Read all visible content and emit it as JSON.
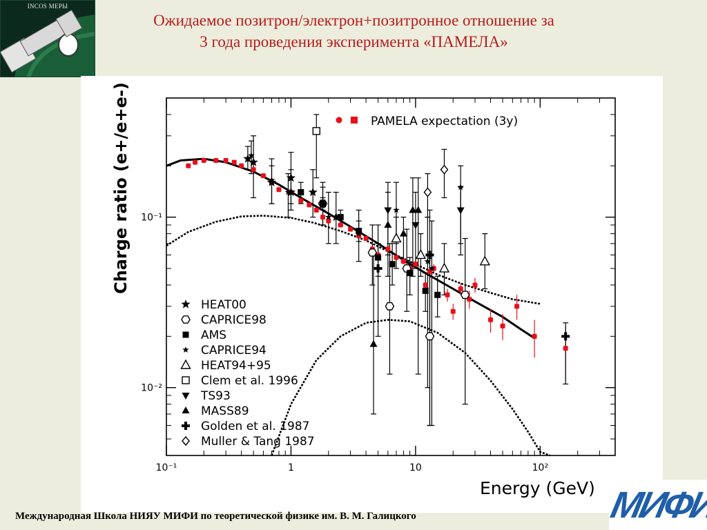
{
  "title": {
    "line1": "Ожидаемое позитрон/электрон+позитронное отношение за",
    "line2": "3 года проведения эксперимента «ПАМЕЛА»"
  },
  "logo_top_left": {
    "text": "INCOS МЕРЫ",
    "icon": "satellite-icon"
  },
  "footer": {
    "text": "Международная Школа НИЯУ МИФИ по теоретической физике им. В. М. Галицкого"
  },
  "logo_bottom_right": {
    "text": "МИФИ"
  },
  "colors": {
    "title": "#b71a1a",
    "pamela": "#e8101a",
    "background": "#ededde",
    "logo_blue": "#1f5fa8"
  },
  "chart_data": {
    "type": "scatter",
    "xlabel": "Energy (GeV)",
    "ylabel": "Charge ratio (e+/e+e-)",
    "xscale": "log",
    "yscale": "log",
    "xlim": [
      0.1,
      400
    ],
    "ylim": [
      0.004,
      0.5
    ],
    "xticks": [
      "10⁻¹",
      "1",
      "10",
      "10²"
    ],
    "yticks": [
      "10⁻²",
      "10⁻¹"
    ],
    "legend_top": "PAMELA expectation (3y)",
    "legend_entries": [
      {
        "label": "HEAT00",
        "marker": "star"
      },
      {
        "label": "CAPRICE98",
        "marker": "hexagon-open"
      },
      {
        "label": "AMS",
        "marker": "square-filled"
      },
      {
        "label": "CAPRICE94",
        "marker": "star-small"
      },
      {
        "label": "HEAT94+95",
        "marker": "triangle-up-open"
      },
      {
        "label": "Clem et al. 1996",
        "marker": "square-open"
      },
      {
        "label": "TS93",
        "marker": "triangle-down-filled"
      },
      {
        "label": "MASS89",
        "marker": "triangle-up-filled"
      },
      {
        "label": "Golden et al. 1987",
        "marker": "cross-filled"
      },
      {
        "label": "Muller & Tang 1987",
        "marker": "diamond-open"
      }
    ],
    "curves": [
      {
        "style": "solid",
        "points": [
          [
            0.1,
            0.2
          ],
          [
            0.13,
            0.215
          ],
          [
            0.2,
            0.22
          ],
          [
            0.3,
            0.21
          ],
          [
            0.5,
            0.185
          ],
          [
            0.8,
            0.155
          ],
          [
            1.2,
            0.13
          ],
          [
            2,
            0.105
          ],
          [
            3,
            0.088
          ],
          [
            5,
            0.07
          ],
          [
            8,
            0.056
          ],
          [
            12,
            0.047
          ],
          [
            20,
            0.038
          ],
          [
            30,
            0.032
          ],
          [
            50,
            0.026
          ],
          [
            70,
            0.022
          ],
          [
            90,
            0.0195
          ]
        ]
      },
      {
        "style": "dotted",
        "points": [
          [
            0.1,
            0.068
          ],
          [
            0.15,
            0.082
          ],
          [
            0.25,
            0.094
          ],
          [
            0.4,
            0.101
          ],
          [
            0.6,
            0.102
          ],
          [
            1,
            0.099
          ],
          [
            1.5,
            0.093
          ],
          [
            2.5,
            0.083
          ],
          [
            4,
            0.073
          ],
          [
            6,
            0.063
          ],
          [
            10,
            0.053
          ],
          [
            15,
            0.046
          ],
          [
            25,
            0.04
          ],
          [
            40,
            0.036
          ],
          [
            60,
            0.033
          ],
          [
            100,
            0.031
          ]
        ]
      },
      {
        "style": "dotted",
        "points": [
          [
            0.7,
            0.004
          ],
          [
            1,
            0.008
          ],
          [
            1.6,
            0.0145
          ],
          [
            2.5,
            0.02
          ],
          [
            4,
            0.024
          ],
          [
            6,
            0.025
          ],
          [
            9,
            0.0245
          ],
          [
            15,
            0.021
          ],
          [
            25,
            0.016
          ],
          [
            40,
            0.011
          ],
          [
            60,
            0.0075
          ],
          [
            80,
            0.0055
          ],
          [
            100,
            0.0042
          ],
          [
            120,
            0.004
          ]
        ]
      }
    ],
    "series": [
      {
        "name": "PAMELA expectation (3y)",
        "marker": "red-square-dot",
        "x": [
          0.15,
          0.17,
          0.2,
          0.25,
          0.3,
          0.35,
          0.4,
          0.5,
          0.6,
          0.7,
          0.8,
          1.0,
          1.2,
          1.4,
          1.6,
          1.8,
          2.0,
          2.5,
          3.0,
          3.5,
          4.0,
          4.5,
          5.0,
          6.0,
          7.0,
          8.0,
          9.0,
          10,
          12,
          13,
          14,
          18,
          20,
          23,
          27,
          30,
          40,
          50,
          65,
          90,
          160
        ],
        "y": [
          0.2,
          0.21,
          0.215,
          0.215,
          0.215,
          0.21,
          0.2,
          0.19,
          0.175,
          0.16,
          0.145,
          0.14,
          0.125,
          0.118,
          0.11,
          0.1,
          0.095,
          0.09,
          0.085,
          0.078,
          0.075,
          0.065,
          0.06,
          0.065,
          0.058,
          0.055,
          0.05,
          0.053,
          0.04,
          0.048,
          0.05,
          0.035,
          0.028,
          0.038,
          0.033,
          0.04,
          0.025,
          0.023,
          0.03,
          0.02,
          0.017
        ],
        "err": [
          0.004,
          0.002,
          0.002,
          0.002,
          0.002,
          0.002,
          0.002,
          0.002,
          0.002,
          0.002,
          0.002,
          0.002,
          0.002,
          0.002,
          0.002,
          0.002,
          0.002,
          0.002,
          0.002,
          0.002,
          0.002,
          0.002,
          0.002,
          0.002,
          0.002,
          0.002,
          0.002,
          0.002,
          0.002,
          0.002,
          0.003,
          0.003,
          0.003,
          0.003,
          0.004,
          0.004,
          0.004,
          0.004,
          0.005,
          0.005,
          0.006
        ]
      },
      {
        "name": "HEAT00",
        "marker": "star",
        "x": [
          0.45,
          0.5,
          0.7,
          1.0,
          1.0,
          1.5,
          1.8,
          2.3
        ],
        "y": [
          0.22,
          0.21,
          0.16,
          0.17,
          0.14,
          0.14,
          0.12,
          0.1
        ],
        "ylo": [
          0.19,
          0.13,
          0.12,
          0.12,
          0.11,
          0.1,
          0.09,
          0.07
        ],
        "yhi": [
          0.26,
          0.3,
          0.2,
          0.24,
          0.19,
          0.19,
          0.15,
          0.14
        ]
      },
      {
        "name": "CAPRICE98",
        "marker": "hexagon-open",
        "x": [
          1.8,
          4.5,
          6.2,
          8.5,
          13,
          25
        ],
        "y": [
          0.12,
          0.062,
          0.03,
          0.05,
          0.02,
          0.035
        ],
        "ylo": [
          0.09,
          0.04,
          0.012,
          0.028,
          0.006,
          0.008
        ],
        "yhi": [
          0.16,
          0.09,
          0.07,
          0.085,
          0.06,
          0.075
        ]
      },
      {
        "name": "AMS",
        "marker": "square-filled",
        "x": [
          1.2,
          1.8,
          2.5,
          3.5,
          5.0,
          6.5,
          9.0,
          12,
          15
        ],
        "y": [
          0.14,
          0.12,
          0.1,
          0.083,
          0.058,
          0.053,
          0.047,
          0.037,
          0.035
        ],
        "ylo": [
          0.12,
          0.11,
          0.09,
          0.072,
          0.045,
          0.04,
          0.035,
          0.028,
          0.026
        ],
        "yhi": [
          0.16,
          0.13,
          0.11,
          0.095,
          0.07,
          0.07,
          0.058,
          0.047,
          0.045
        ]
      },
      {
        "name": "CAPRICE94",
        "marker": "star-small",
        "x": [
          0.48,
          0.7,
          0.95,
          2.0,
          3.5,
          7.0,
          12.5,
          13.5,
          23
        ],
        "y": [
          0.23,
          0.165,
          0.14,
          0.1,
          0.08,
          0.11,
          0.055,
          0.05,
          0.15
        ],
        "ylo": [
          0.18,
          0.12,
          0.1,
          0.07,
          0.055,
          0.07,
          0.01,
          0.006,
          0.06
        ],
        "yhi": [
          0.28,
          0.22,
          0.18,
          0.14,
          0.11,
          0.16,
          0.1,
          0.095,
          0.2
        ]
      },
      {
        "name": "HEAT94+95",
        "marker": "triangle-up-open",
        "x": [
          7.0,
          11,
          17,
          36
        ],
        "y": [
          0.075,
          0.06,
          0.05,
          0.055
        ],
        "ylo": [
          0.05,
          0.045,
          0.035,
          0.038
        ],
        "yhi": [
          0.1,
          0.08,
          0.07,
          0.08
        ]
      },
      {
        "name": "Clem et al. 1996",
        "marker": "square-open",
        "x": [
          1.6
        ],
        "y": [
          0.32
        ],
        "ylo": [
          0.17
        ],
        "yhi": [
          0.4
        ]
      },
      {
        "name": "TS93",
        "marker": "triangle-down-filled",
        "x": [
          6.0,
          10,
          23
        ],
        "y": [
          0.11,
          0.09,
          0.11
        ],
        "ylo": [
          0.06,
          0.05,
          0.07
        ],
        "yhi": [
          0.16,
          0.14,
          0.15
        ]
      },
      {
        "name": "MASS89",
        "marker": "triangle-up-filled",
        "x": [
          4.6,
          6.0,
          8.0,
          9.5,
          10.5
        ],
        "y": [
          0.018,
          0.09,
          0.08,
          0.11,
          0.11
        ],
        "ylo": [
          0.007,
          0.045,
          0.055,
          0.045,
          0.012
        ],
        "yhi": [
          0.06,
          0.14,
          0.1,
          0.17,
          0.17
        ]
      },
      {
        "name": "Golden et al. 1987",
        "marker": "cross-filled",
        "x": [
          5.0,
          13,
          160
        ],
        "y": [
          0.05,
          0.06,
          0.02
        ],
        "ylo": [
          0.02,
          0.006,
          0.0105
        ],
        "yhi": [
          0.09,
          0.11,
          0.024
        ]
      },
      {
        "name": "Muller & Tang 1987",
        "marker": "diamond-open",
        "x": [
          12.5,
          17
        ],
        "y": [
          0.14,
          0.19
        ],
        "ylo": [
          0.1,
          0.13
        ],
        "yhi": [
          0.18,
          0.25
        ]
      }
    ]
  }
}
